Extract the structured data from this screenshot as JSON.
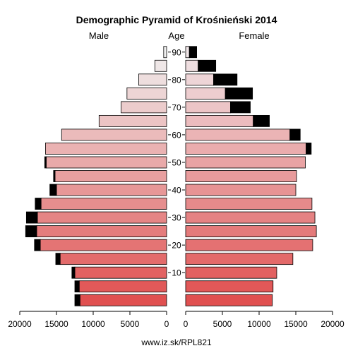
{
  "chart_data": {
    "type": "population-pyramid",
    "title": "Demographic Pyramid of Krośnieński 2014",
    "left_label": "Male",
    "center_label": "Age",
    "right_label": "Female",
    "footer": "www.iz.sk/RPL821",
    "xlim": [
      0,
      20000
    ],
    "x_ticks": [
      0,
      5000,
      10000,
      15000,
      20000
    ],
    "x_tick_labels_male": [
      "20000",
      "15000",
      "10000",
      "5000",
      "0"
    ],
    "x_tick_labels_female": [
      "0",
      "5000",
      "10000",
      "15000",
      "20000"
    ],
    "age_tick_values": [
      10,
      20,
      30,
      40,
      50,
      60,
      70,
      80,
      90
    ],
    "age_groups": [
      "0-4",
      "5-9",
      "10-14",
      "15-19",
      "20-24",
      "25-29",
      "30-34",
      "35-39",
      "40-44",
      "45-49",
      "50-54",
      "55-59",
      "60-64",
      "65-69",
      "70-74",
      "75-79",
      "80-84",
      "85-89",
      "90+"
    ],
    "male_base": [
      11800,
      11900,
      12500,
      14500,
      17200,
      17700,
      17600,
      17100,
      15000,
      15200,
      16400,
      16500,
      14300,
      9200,
      6200,
      5400,
      3800,
      1600,
      400
    ],
    "male_excess": [
      700,
      600,
      400,
      600,
      800,
      1500,
      1500,
      800,
      900,
      200,
      200,
      0,
      0,
      0,
      0,
      0,
      0,
      0,
      0
    ],
    "female_base": [
      11800,
      11900,
      12400,
      14600,
      17300,
      17800,
      17600,
      17200,
      15000,
      15100,
      16300,
      16400,
      14200,
      9200,
      6100,
      5400,
      3800,
      1700,
      500
    ],
    "female_excess": [
      0,
      0,
      0,
      0,
      0,
      0,
      0,
      0,
      0,
      0,
      0,
      700,
      1400,
      2200,
      2700,
      3700,
      3200,
      2400,
      1000
    ],
    "colors": {
      "male_bottom": "#e05050",
      "male_top": "#f0f0f0",
      "female_bottom": "#e05050",
      "female_top": "#f0e6e8",
      "excess": "#000000",
      "outline": "#000000"
    }
  }
}
